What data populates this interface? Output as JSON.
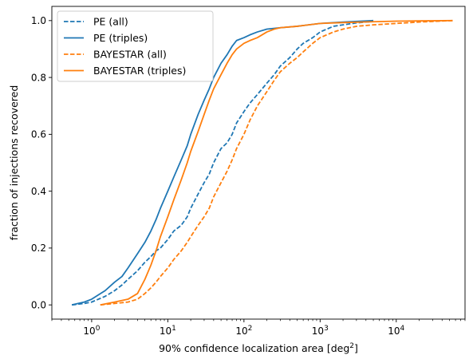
{
  "chart_data": {
    "type": "line",
    "title": "",
    "xlabel": "90% confidence localization area [deg",
    "xlabel_sup": "2",
    "xlabel_end": "]",
    "ylabel": "fraction of injections recovered",
    "xscale": "log",
    "xlim": [
      0.3,
      80000
    ],
    "ylim": [
      -0.05,
      1.05
    ],
    "x_ticks": [
      {
        "value": 1,
        "base": "10",
        "exp": "0"
      },
      {
        "value": 10,
        "base": "10",
        "exp": "1"
      },
      {
        "value": 100,
        "base": "10",
        "exp": "2"
      },
      {
        "value": 1000,
        "base": "10",
        "exp": "3"
      },
      {
        "value": 10000,
        "base": "10",
        "exp": "4"
      }
    ],
    "y_ticks": [
      {
        "value": 0.0,
        "label": "0.0"
      },
      {
        "value": 0.2,
        "label": "0.2"
      },
      {
        "value": 0.4,
        "label": "0.4"
      },
      {
        "value": 0.6,
        "label": "0.6"
      },
      {
        "value": 0.8,
        "label": "0.8"
      },
      {
        "value": 1.0,
        "label": "1.0"
      }
    ],
    "grid": false,
    "legend_position": "upper-left",
    "series": [
      {
        "name": "PE (all)",
        "color": "#1f77b4",
        "dash": "dashed",
        "points": [
          [
            0.55,
            0.0
          ],
          [
            0.8,
            0.005
          ],
          [
            1.0,
            0.01
          ],
          [
            1.5,
            0.03
          ],
          [
            2,
            0.05
          ],
          [
            2.5,
            0.07
          ],
          [
            3,
            0.09
          ],
          [
            4,
            0.12
          ],
          [
            5,
            0.15
          ],
          [
            6,
            0.17
          ],
          [
            7,
            0.19
          ],
          [
            8,
            0.2
          ],
          [
            10,
            0.23
          ],
          [
            12,
            0.26
          ],
          [
            15,
            0.28
          ],
          [
            18,
            0.31
          ],
          [
            20,
            0.34
          ],
          [
            25,
            0.39
          ],
          [
            30,
            0.43
          ],
          [
            35,
            0.46
          ],
          [
            40,
            0.5
          ],
          [
            50,
            0.55
          ],
          [
            60,
            0.57
          ],
          [
            70,
            0.6
          ],
          [
            80,
            0.64
          ],
          [
            100,
            0.68
          ],
          [
            120,
            0.71
          ],
          [
            150,
            0.74
          ],
          [
            200,
            0.78
          ],
          [
            250,
            0.81
          ],
          [
            300,
            0.84
          ],
          [
            400,
            0.87
          ],
          [
            500,
            0.9
          ],
          [
            600,
            0.92
          ],
          [
            800,
            0.94
          ],
          [
            1000,
            0.96
          ],
          [
            1500,
            0.98
          ],
          [
            2000,
            0.985
          ],
          [
            3000,
            0.992
          ],
          [
            5000,
            0.997
          ]
        ]
      },
      {
        "name": "PE (triples)",
        "color": "#1f77b4",
        "dash": "solid",
        "points": [
          [
            0.55,
            0.0
          ],
          [
            0.8,
            0.01
          ],
          [
            1.0,
            0.02
          ],
          [
            1.5,
            0.05
          ],
          [
            2,
            0.08
          ],
          [
            2.5,
            0.1
          ],
          [
            3,
            0.13
          ],
          [
            4,
            0.18
          ],
          [
            5,
            0.22
          ],
          [
            6,
            0.26
          ],
          [
            7,
            0.3
          ],
          [
            8,
            0.34
          ],
          [
            10,
            0.4
          ],
          [
            12,
            0.45
          ],
          [
            15,
            0.51
          ],
          [
            18,
            0.56
          ],
          [
            20,
            0.6
          ],
          [
            25,
            0.67
          ],
          [
            30,
            0.72
          ],
          [
            35,
            0.76
          ],
          [
            40,
            0.8
          ],
          [
            50,
            0.85
          ],
          [
            60,
            0.88
          ],
          [
            70,
            0.91
          ],
          [
            80,
            0.93
          ],
          [
            100,
            0.94
          ],
          [
            120,
            0.95
          ],
          [
            150,
            0.96
          ],
          [
            200,
            0.97
          ],
          [
            300,
            0.975
          ],
          [
            500,
            0.98
          ],
          [
            1000,
            0.99
          ],
          [
            2000,
            0.995
          ],
          [
            5000,
            1.0
          ]
        ]
      },
      {
        "name": "BAYESTAR (all)",
        "color": "#ff7f0e",
        "dash": "dashed",
        "points": [
          [
            1.3,
            0.0
          ],
          [
            2,
            0.005
          ],
          [
            3,
            0.01
          ],
          [
            4,
            0.02
          ],
          [
            5,
            0.04
          ],
          [
            6,
            0.06
          ],
          [
            7,
            0.08
          ],
          [
            8,
            0.1
          ],
          [
            10,
            0.13
          ],
          [
            12,
            0.16
          ],
          [
            15,
            0.19
          ],
          [
            18,
            0.22
          ],
          [
            20,
            0.24
          ],
          [
            25,
            0.28
          ],
          [
            30,
            0.31
          ],
          [
            35,
            0.34
          ],
          [
            40,
            0.38
          ],
          [
            50,
            0.43
          ],
          [
            60,
            0.47
          ],
          [
            70,
            0.51
          ],
          [
            80,
            0.55
          ],
          [
            100,
            0.6
          ],
          [
            120,
            0.65
          ],
          [
            150,
            0.7
          ],
          [
            200,
            0.75
          ],
          [
            250,
            0.79
          ],
          [
            300,
            0.82
          ],
          [
            400,
            0.85
          ],
          [
            500,
            0.87
          ],
          [
            600,
            0.89
          ],
          [
            800,
            0.92
          ],
          [
            1000,
            0.94
          ],
          [
            1500,
            0.96
          ],
          [
            2000,
            0.97
          ],
          [
            3000,
            0.98
          ],
          [
            5000,
            0.985
          ],
          [
            10000,
            0.99
          ],
          [
            20000,
            0.995
          ],
          [
            55000,
            1.0
          ]
        ]
      },
      {
        "name": "BAYESTAR (triples)",
        "color": "#ff7f0e",
        "dash": "solid",
        "points": [
          [
            1.3,
            0.0
          ],
          [
            2,
            0.01
          ],
          [
            3,
            0.02
          ],
          [
            4,
            0.04
          ],
          [
            5,
            0.09
          ],
          [
            6,
            0.14
          ],
          [
            7,
            0.19
          ],
          [
            8,
            0.24
          ],
          [
            10,
            0.31
          ],
          [
            12,
            0.37
          ],
          [
            15,
            0.44
          ],
          [
            18,
            0.5
          ],
          [
            20,
            0.54
          ],
          [
            25,
            0.61
          ],
          [
            30,
            0.67
          ],
          [
            35,
            0.72
          ],
          [
            40,
            0.76
          ],
          [
            50,
            0.81
          ],
          [
            60,
            0.85
          ],
          [
            70,
            0.88
          ],
          [
            80,
            0.9
          ],
          [
            100,
            0.92
          ],
          [
            120,
            0.93
          ],
          [
            150,
            0.94
          ],
          [
            200,
            0.96
          ],
          [
            250,
            0.97
          ],
          [
            300,
            0.975
          ],
          [
            500,
            0.98
          ],
          [
            1000,
            0.99
          ],
          [
            2000,
            0.993
          ],
          [
            5000,
            0.996
          ],
          [
            10000,
            0.998
          ],
          [
            20000,
            0.999
          ],
          [
            55000,
            1.0
          ]
        ]
      }
    ]
  }
}
